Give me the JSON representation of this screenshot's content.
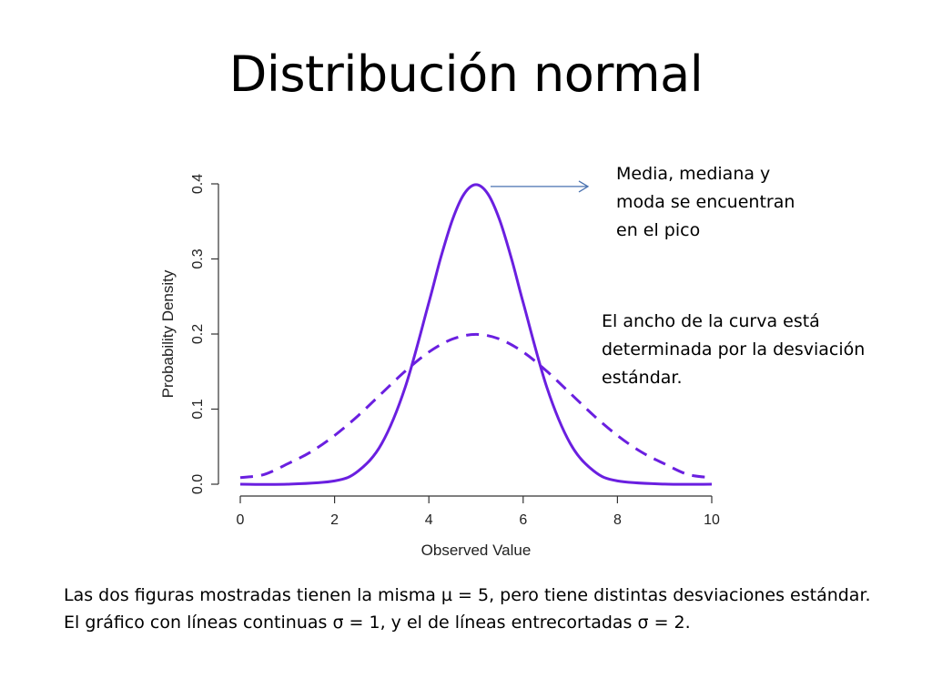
{
  "slide": {
    "title": "Distribución normal",
    "annotation_peak": "Media, mediana y moda se encuentran en el pico",
    "annotation_width": "El ancho de la curva está determinada por la desviación estándar.",
    "caption": "Las dos figuras mostradas tienen la misma µ = 5, pero tiene distintas desviaciones estándar. El gráfico con líneas continuas σ = 1, y el de líneas entrecortadas σ = 2."
  },
  "colors": {
    "curve": "#6a1fe0",
    "arrow": "#4a72b0",
    "axis": "#333333"
  },
  "chart_data": {
    "type": "line",
    "xlabel": "Observed Value",
    "ylabel": "Probability Density",
    "xlim": [
      0,
      10
    ],
    "ylim": [
      0,
      0.4
    ],
    "x_ticks": [
      0,
      2,
      4,
      6,
      8,
      10
    ],
    "y_ticks": [
      0.0,
      0.1,
      0.2,
      0.3,
      0.4
    ],
    "y_tick_labels": [
      "0.0",
      "0.1",
      "0.2",
      "0.3",
      "0.4"
    ],
    "grid": false,
    "series": [
      {
        "style": "solid",
        "x": [
          0,
          1,
          2,
          2.5,
          3,
          3.5,
          4,
          4.25,
          4.5,
          4.75,
          5,
          5.25,
          5.5,
          5.75,
          6,
          6.5,
          7,
          7.5,
          8,
          9,
          10
        ],
        "values": [
          0.0,
          0.0,
          0.0044,
          0.0175,
          0.054,
          0.1295,
          0.242,
          0.3011,
          0.3521,
          0.3867,
          0.3989,
          0.3867,
          0.3521,
          0.3011,
          0.242,
          0.1295,
          0.054,
          0.0175,
          0.0044,
          0.0001,
          0.0
        ]
      },
      {
        "style": "dashed",
        "x": [
          0,
          0.5,
          1,
          1.5,
          2,
          2.5,
          3,
          3.5,
          4,
          4.5,
          5,
          5.5,
          6,
          6.5,
          7,
          7.5,
          8,
          8.5,
          9,
          9.5,
          10
        ],
        "values": [
          0.0088,
          0.0129,
          0.027,
          0.0431,
          0.0648,
          0.0913,
          0.121,
          0.1506,
          0.176,
          0.1933,
          0.1995,
          0.1933,
          0.176,
          0.1506,
          0.121,
          0.0913,
          0.0648,
          0.0431,
          0.027,
          0.0129,
          0.0088
        ]
      }
    ],
    "annotation": {
      "x": 5,
      "y": 0.3989
    }
  }
}
